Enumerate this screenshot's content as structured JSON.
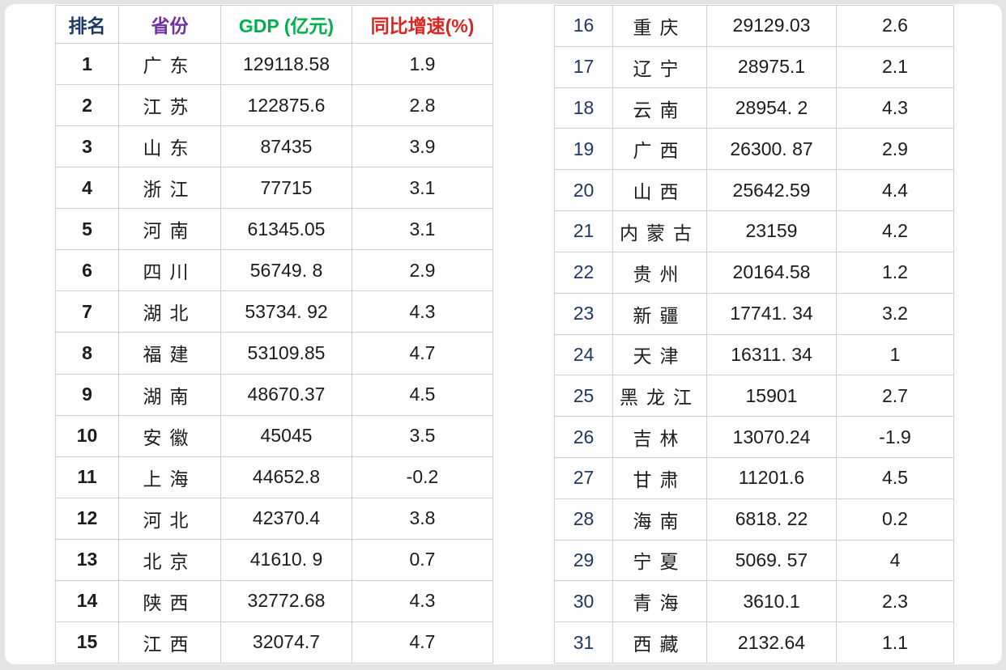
{
  "colors": {
    "page_background": "#e4e5e3",
    "sheet_background": "#fdfdfc",
    "grid_line": "#ccd0d5",
    "rank_text": "#1f3864",
    "province_header": "#7030a0",
    "gdp_header": "#00b050",
    "growth_header": "#dc2420",
    "cell_text": "#1c1c1c"
  },
  "table": {
    "headers": [
      {
        "label": "排名",
        "color": "#1f3864"
      },
      {
        "label": "省份",
        "color": "#7030a0"
      },
      {
        "label": "GDP (亿元)",
        "color": "#00b050"
      },
      {
        "label": "同比增速(%)",
        "color": "#dc2420"
      }
    ],
    "left_rows": [
      {
        "rank": "1",
        "province": "广东",
        "gdp": "129118.58",
        "growth": "1.9"
      },
      {
        "rank": "2",
        "province": "江苏",
        "gdp": "122875.6",
        "growth": "2.8"
      },
      {
        "rank": "3",
        "province": "山东",
        "gdp": "87435",
        "growth": "3.9"
      },
      {
        "rank": "4",
        "province": "浙江",
        "gdp": "77715",
        "growth": "3.1"
      },
      {
        "rank": "5",
        "province": "河南",
        "gdp": "61345.05",
        "growth": "3.1"
      },
      {
        "rank": "6",
        "province": "四川",
        "gdp": "56749. 8",
        "growth": "2.9"
      },
      {
        "rank": "7",
        "province": "湖北",
        "gdp": "53734. 92",
        "growth": "4.3"
      },
      {
        "rank": "8",
        "province": "福建",
        "gdp": "53109.85",
        "growth": "4.7"
      },
      {
        "rank": "9",
        "province": "湖南",
        "gdp": "48670.37",
        "growth": "4.5"
      },
      {
        "rank": "10",
        "province": "安徽",
        "gdp": "45045",
        "growth": "3.5"
      },
      {
        "rank": "11",
        "province": "上海",
        "gdp": "44652.8",
        "growth": "-0.2"
      },
      {
        "rank": "12",
        "province": "河北",
        "gdp": "42370.4",
        "growth": "3.8"
      },
      {
        "rank": "13",
        "province": "北京",
        "gdp": "41610. 9",
        "growth": "0.7"
      },
      {
        "rank": "14",
        "province": "陕西",
        "gdp": "32772.68",
        "growth": "4.3"
      },
      {
        "rank": "15",
        "province": "江西",
        "gdp": "32074.7",
        "growth": "4.7"
      }
    ],
    "right_rows": [
      {
        "rank": "16",
        "province": "重庆",
        "gdp": "29129.03",
        "growth": "2.6"
      },
      {
        "rank": "17",
        "province": "辽宁",
        "gdp": "28975.1",
        "growth": "2.1"
      },
      {
        "rank": "18",
        "province": "云南",
        "gdp": "28954. 2",
        "growth": "4.3"
      },
      {
        "rank": "19",
        "province": "广西",
        "gdp": "26300. 87",
        "growth": "2.9"
      },
      {
        "rank": "20",
        "province": "山西",
        "gdp": "25642.59",
        "growth": "4.4"
      },
      {
        "rank": "21",
        "province": "内蒙古",
        "gdp": "23159",
        "growth": "4.2"
      },
      {
        "rank": "22",
        "province": "贵州",
        "gdp": "20164.58",
        "growth": "1.2"
      },
      {
        "rank": "23",
        "province": "新疆",
        "gdp": "17741. 34",
        "growth": "3.2"
      },
      {
        "rank": "24",
        "province": "天津",
        "gdp": "16311. 34",
        "growth": "1"
      },
      {
        "rank": "25",
        "province": "黑龙江",
        "gdp": "15901",
        "growth": "2.7"
      },
      {
        "rank": "26",
        "province": "吉林",
        "gdp": "13070.24",
        "growth": "-1.9"
      },
      {
        "rank": "27",
        "province": "甘肃",
        "gdp": "11201.6",
        "growth": "4.5"
      },
      {
        "rank": "28",
        "province": "海南",
        "gdp": "6818. 22",
        "growth": "0.2"
      },
      {
        "rank": "29",
        "province": "宁夏",
        "gdp": "5069. 57",
        "growth": "4"
      },
      {
        "rank": "30",
        "province": "青海",
        "gdp": "3610.1",
        "growth": "2.3"
      },
      {
        "rank": "31",
        "province": "西藏",
        "gdp": "2132.64",
        "growth": "1.1"
      }
    ]
  },
  "chart_data": {
    "type": "table",
    "title": "省份GDP排名表",
    "columns": [
      "排名",
      "省份",
      "GDP (亿元)",
      "同比增速(%)"
    ],
    "rows": [
      [
        1,
        "广东",
        129118.58,
        1.9
      ],
      [
        2,
        "江苏",
        122875.6,
        2.8
      ],
      [
        3,
        "山东",
        87435,
        3.9
      ],
      [
        4,
        "浙江",
        77715,
        3.1
      ],
      [
        5,
        "河南",
        61345.05,
        3.1
      ],
      [
        6,
        "四川",
        56749.8,
        2.9
      ],
      [
        7,
        "湖北",
        53734.92,
        4.3
      ],
      [
        8,
        "福建",
        53109.85,
        4.7
      ],
      [
        9,
        "湖南",
        48670.37,
        4.5
      ],
      [
        10,
        "安徽",
        45045,
        3.5
      ],
      [
        11,
        "上海",
        44652.8,
        -0.2
      ],
      [
        12,
        "河北",
        42370.4,
        3.8
      ],
      [
        13,
        "北京",
        41610.9,
        0.7
      ],
      [
        14,
        "陕西",
        32772.68,
        4.3
      ],
      [
        15,
        "江西",
        32074.7,
        4.7
      ],
      [
        16,
        "重庆",
        29129.03,
        2.6
      ],
      [
        17,
        "辽宁",
        28975.1,
        2.1
      ],
      [
        18,
        "云南",
        28954.2,
        4.3
      ],
      [
        19,
        "广西",
        26300.87,
        2.9
      ],
      [
        20,
        "山西",
        25642.59,
        4.4
      ],
      [
        21,
        "内蒙古",
        23159,
        4.2
      ],
      [
        22,
        "贵州",
        20164.58,
        1.2
      ],
      [
        23,
        "新疆",
        17741.34,
        3.2
      ],
      [
        24,
        "天津",
        16311.34,
        1
      ],
      [
        25,
        "黑龙江",
        15901,
        2.7
      ],
      [
        26,
        "吉林",
        13070.24,
        -1.9
      ],
      [
        27,
        "甘肃",
        11201.6,
        4.5
      ],
      [
        28,
        "海南",
        6818.22,
        0.2
      ],
      [
        29,
        "宁夏",
        5069.57,
        4
      ],
      [
        30,
        "青海",
        3610.1,
        2.3
      ],
      [
        31,
        "西藏",
        2132.64,
        1.1
      ]
    ]
  }
}
